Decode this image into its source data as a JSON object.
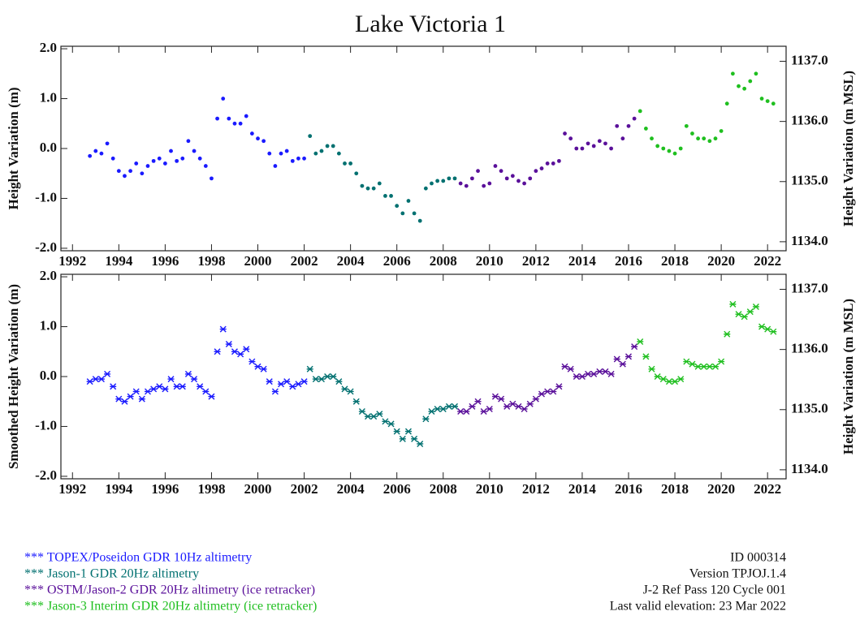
{
  "title": "Lake Victoria 1",
  "notes": [
    "ID 000314",
    "Version TPJOJ.1.4",
    "J-2 Ref Pass 120 Cycle 001",
    "Last valid elevation: 23 Mar 2022"
  ],
  "chart_data": [
    {
      "type": "scatter",
      "marker": "dot",
      "ylabel": "Height Variation (m)",
      "y2label": "Height Variation (m MSL)",
      "xlim": [
        1991.5,
        2022.8
      ],
      "xticks": [
        1992,
        1994,
        1996,
        1998,
        2000,
        2002,
        2004,
        2006,
        2008,
        2010,
        2012,
        2014,
        2016,
        2018,
        2020,
        2022
      ],
      "ylim": [
        -2.05,
        2.05
      ],
      "yticks": [
        {
          "value": -2,
          "label": "-2.0"
        },
        {
          "value": -1,
          "label": "-1.0"
        },
        {
          "value": 0,
          "label": "0.0"
        },
        {
          "value": 1,
          "label": "1.0"
        },
        {
          "value": 2,
          "label": "2.0"
        }
      ],
      "y2lim": [
        1133.85,
        1137.25
      ],
      "y2ticks": [
        {
          "value": 1134,
          "label": "1134.0"
        },
        {
          "value": 1135,
          "label": "1135.0"
        },
        {
          "value": 1136,
          "label": "1136.0"
        },
        {
          "value": 1137,
          "label": "1137.0"
        }
      ],
      "series": [
        {
          "name": "*** TOPEX/Poseidon GDR 10Hz altimetry",
          "color": "#1a1aff",
          "x": [
            1992.75,
            1993,
            1993.25,
            1993.5,
            1993.75,
            1994,
            1994.25,
            1994.5,
            1994.75,
            1995,
            1995.25,
            1995.5,
            1995.75,
            1996,
            1996.25,
            1996.5,
            1996.75,
            1997,
            1997.25,
            1997.5,
            1997.75,
            1998,
            1998.25,
            1998.5,
            1998.75,
            1999,
            1999.25,
            1999.5,
            1999.75,
            2000,
            2000.25,
            2000.5,
            2000.75,
            2001,
            2001.25,
            2001.5,
            2001.75,
            2002
          ],
          "values": [
            -0.15,
            -0.05,
            -0.1,
            0.1,
            -0.2,
            -0.45,
            -0.55,
            -0.45,
            -0.3,
            -0.5,
            -0.35,
            -0.25,
            -0.2,
            -0.3,
            -0.05,
            -0.25,
            -0.2,
            0.15,
            -0.05,
            -0.2,
            -0.35,
            -0.6,
            0.6,
            1.0,
            0.6,
            0.5,
            0.5,
            0.65,
            0.3,
            0.2,
            0.15,
            -0.1,
            -0.35,
            -0.1,
            -0.05,
            -0.25,
            -0.2,
            -0.2
          ]
        },
        {
          "name": "*** Jason-1 GDR 20Hz altimetry",
          "color": "#007070",
          "x": [
            2002.25,
            2002.5,
            2002.75,
            2003,
            2003.25,
            2003.5,
            2003.75,
            2004,
            2004.25,
            2004.5,
            2004.75,
            2005,
            2005.25,
            2005.5,
            2005.75,
            2006,
            2006.25,
            2006.5,
            2006.75,
            2007,
            2007.25,
            2007.5,
            2007.75,
            2008,
            2008.25,
            2008.5
          ],
          "values": [
            0.25,
            -0.1,
            -0.05,
            0.05,
            0.05,
            -0.1,
            -0.3,
            -0.3,
            -0.5,
            -0.75,
            -0.8,
            -0.8,
            -0.7,
            -0.95,
            -0.95,
            -1.15,
            -1.3,
            -1.05,
            -1.3,
            -1.45,
            -0.8,
            -0.7,
            -0.65,
            -0.65,
            -0.6,
            -0.6
          ]
        },
        {
          "name": "*** OSTM/Jason-2 GDR 20Hz altimetry (ice retracker)",
          "color": "#5a109a",
          "x": [
            2008.75,
            2009,
            2009.25,
            2009.5,
            2009.75,
            2010,
            2010.25,
            2010.5,
            2010.75,
            2011,
            2011.25,
            2011.5,
            2011.75,
            2012,
            2012.25,
            2012.5,
            2012.75,
            2013,
            2013.25,
            2013.5,
            2013.75,
            2014,
            2014.25,
            2014.5,
            2014.75,
            2015,
            2015.25,
            2015.5,
            2015.75,
            2016,
            2016.25
          ],
          "values": [
            -0.7,
            -0.75,
            -0.6,
            -0.45,
            -0.75,
            -0.7,
            -0.35,
            -0.45,
            -0.6,
            -0.55,
            -0.65,
            -0.7,
            -0.6,
            -0.45,
            -0.4,
            -0.3,
            -0.3,
            -0.25,
            0.3,
            0.2,
            0.0,
            0.0,
            0.1,
            0.05,
            0.15,
            0.1,
            0.0,
            0.45,
            0.2,
            0.45,
            0.6
          ]
        },
        {
          "name": "*** Jason-3 Interim GDR 20Hz altimetry (ice retracker)",
          "color": "#1fbf1f",
          "x": [
            2016.5,
            2016.75,
            2017,
            2017.25,
            2017.5,
            2017.75,
            2018,
            2018.25,
            2018.5,
            2018.75,
            2019,
            2019.25,
            2019.5,
            2019.75,
            2020,
            2020.25,
            2020.5,
            2020.75,
            2021,
            2021.25,
            2021.5,
            2021.75,
            2022,
            2022.25
          ],
          "values": [
            0.75,
            0.4,
            0.2,
            0.05,
            0.0,
            -0.05,
            -0.1,
            0.0,
            0.45,
            0.3,
            0.2,
            0.2,
            0.15,
            0.2,
            0.35,
            0.9,
            1.5,
            1.25,
            1.2,
            1.35,
            1.5,
            1.0,
            0.95,
            0.9
          ]
        }
      ]
    },
    {
      "type": "scatter",
      "marker": "star",
      "ylabel": "Smoothed Height Variation (m)",
      "y2label": "Height Variation (m MSL)",
      "xlim": [
        1991.5,
        2022.8
      ],
      "xticks": [
        1992,
        1994,
        1996,
        1998,
        2000,
        2002,
        2004,
        2006,
        2008,
        2010,
        2012,
        2014,
        2016,
        2018,
        2020,
        2022
      ],
      "ylim": [
        -2.05,
        2.05
      ],
      "yticks": [
        {
          "value": -2,
          "label": "-2.0"
        },
        {
          "value": -1,
          "label": "-1.0"
        },
        {
          "value": 0,
          "label": "0.0"
        },
        {
          "value": 1,
          "label": "1.0"
        },
        {
          "value": 2,
          "label": "2.0"
        }
      ],
      "y2lim": [
        1133.85,
        1137.25
      ],
      "y2ticks": [
        {
          "value": 1134,
          "label": "1134.0"
        },
        {
          "value": 1135,
          "label": "1135.0"
        },
        {
          "value": 1136,
          "label": "1136.0"
        },
        {
          "value": 1137,
          "label": "1137.0"
        }
      ],
      "series": [
        {
          "color": "#1a1aff",
          "x": [
            1992.75,
            1993,
            1993.25,
            1993.5,
            1993.75,
            1994,
            1994.25,
            1994.5,
            1994.75,
            1995,
            1995.25,
            1995.5,
            1995.75,
            1996,
            1996.25,
            1996.5,
            1996.75,
            1997,
            1997.25,
            1997.5,
            1997.75,
            1998,
            1998.25,
            1998.5,
            1998.75,
            1999,
            1999.25,
            1999.5,
            1999.75,
            2000,
            2000.25,
            2000.5,
            2000.75,
            2001,
            2001.25,
            2001.5,
            2001.75,
            2002
          ],
          "values": [
            -0.1,
            -0.05,
            -0.05,
            0.05,
            -0.2,
            -0.45,
            -0.5,
            -0.4,
            -0.3,
            -0.45,
            -0.3,
            -0.25,
            -0.2,
            -0.25,
            -0.05,
            -0.2,
            -0.2,
            0.05,
            -0.05,
            -0.2,
            -0.3,
            -0.4,
            0.5,
            0.95,
            0.65,
            0.5,
            0.45,
            0.55,
            0.3,
            0.2,
            0.15,
            -0.1,
            -0.3,
            -0.15,
            -0.1,
            -0.2,
            -0.15,
            -0.1
          ]
        },
        {
          "color": "#007070",
          "x": [
            2002.25,
            2002.5,
            2002.75,
            2003,
            2003.25,
            2003.5,
            2003.75,
            2004,
            2004.25,
            2004.5,
            2004.75,
            2005,
            2005.25,
            2005.5,
            2005.75,
            2006,
            2006.25,
            2006.5,
            2006.75,
            2007,
            2007.25,
            2007.5,
            2007.75,
            2008,
            2008.25,
            2008.5
          ],
          "values": [
            0.15,
            -0.05,
            -0.05,
            0.0,
            0.0,
            -0.1,
            -0.25,
            -0.3,
            -0.5,
            -0.7,
            -0.8,
            -0.8,
            -0.75,
            -0.9,
            -0.95,
            -1.1,
            -1.25,
            -1.1,
            -1.25,
            -1.35,
            -0.85,
            -0.7,
            -0.65,
            -0.65,
            -0.6,
            -0.6
          ]
        },
        {
          "color": "#5a109a",
          "x": [
            2008.75,
            2009,
            2009.25,
            2009.5,
            2009.75,
            2010,
            2010.25,
            2010.5,
            2010.75,
            2011,
            2011.25,
            2011.5,
            2011.75,
            2012,
            2012.25,
            2012.5,
            2012.75,
            2013,
            2013.25,
            2013.5,
            2013.75,
            2014,
            2014.25,
            2014.5,
            2014.75,
            2015,
            2015.25,
            2015.5,
            2015.75,
            2016,
            2016.25
          ],
          "values": [
            -0.7,
            -0.7,
            -0.6,
            -0.5,
            -0.7,
            -0.65,
            -0.4,
            -0.45,
            -0.6,
            -0.55,
            -0.6,
            -0.65,
            -0.55,
            -0.45,
            -0.35,
            -0.3,
            -0.3,
            -0.2,
            0.2,
            0.15,
            0.0,
            0.0,
            0.05,
            0.05,
            0.1,
            0.1,
            0.05,
            0.35,
            0.25,
            0.4,
            0.6
          ]
        },
        {
          "color": "#1fbf1f",
          "x": [
            2016.5,
            2016.75,
            2017,
            2017.25,
            2017.5,
            2017.75,
            2018,
            2018.25,
            2018.5,
            2018.75,
            2019,
            2019.25,
            2019.5,
            2019.75,
            2020,
            2020.25,
            2020.5,
            2020.75,
            2021,
            2021.25,
            2021.5,
            2021.75,
            2022,
            2022.25
          ],
          "values": [
            0.7,
            0.4,
            0.15,
            0.0,
            -0.05,
            -0.1,
            -0.1,
            -0.05,
            0.3,
            0.25,
            0.2,
            0.2,
            0.2,
            0.2,
            0.3,
            0.85,
            1.45,
            1.25,
            1.2,
            1.3,
            1.4,
            1.0,
            0.95,
            0.9
          ]
        }
      ]
    }
  ]
}
